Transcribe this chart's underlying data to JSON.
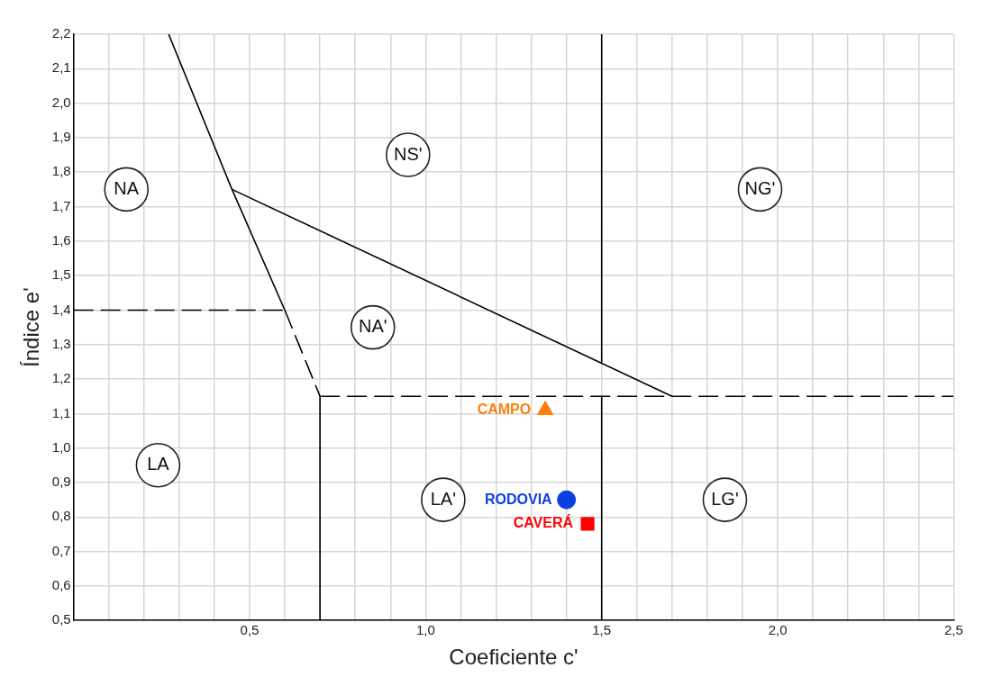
{
  "chart_data": {
    "type": "scatter",
    "xlabel": "Coeficiente c'",
    "ylabel": "Índice e'",
    "xlim": [
      0,
      2.5
    ],
    "ylim": [
      0.5,
      2.2
    ],
    "xticks": [
      {
        "value": 0,
        "label": null
      },
      {
        "value": 0.1,
        "label": null
      },
      {
        "value": 0.2,
        "label": null
      },
      {
        "value": 0.3,
        "label": null
      },
      {
        "value": 0.4,
        "label": null
      },
      {
        "value": 0.5,
        "label": "0,5"
      },
      {
        "value": 0.6,
        "label": null
      },
      {
        "value": 0.7,
        "label": null
      },
      {
        "value": 0.8,
        "label": null
      },
      {
        "value": 0.9,
        "label": null
      },
      {
        "value": 1.0,
        "label": "1,0"
      },
      {
        "value": 1.1,
        "label": null
      },
      {
        "value": 1.2,
        "label": null
      },
      {
        "value": 1.3,
        "label": null
      },
      {
        "value": 1.4,
        "label": null
      },
      {
        "value": 1.5,
        "label": "1,5"
      },
      {
        "value": 1.6,
        "label": null
      },
      {
        "value": 1.7,
        "label": null
      },
      {
        "value": 1.8,
        "label": null
      },
      {
        "value": 1.9,
        "label": null
      },
      {
        "value": 2.0,
        "label": "2,0"
      },
      {
        "value": 2.1,
        "label": null
      },
      {
        "value": 2.2,
        "label": null
      },
      {
        "value": 2.3,
        "label": null
      },
      {
        "value": 2.4,
        "label": null
      },
      {
        "value": 2.5,
        "label": "2,5"
      }
    ],
    "yticks": [
      {
        "value": 0.5,
        "label": "0,5"
      },
      {
        "value": 0.6,
        "label": "0,6"
      },
      {
        "value": 0.7,
        "label": "0,7"
      },
      {
        "value": 0.8,
        "label": "0,8"
      },
      {
        "value": 0.9,
        "label": "0,9"
      },
      {
        "value": 1.0,
        "label": "1,0"
      },
      {
        "value": 1.1,
        "label": "1,1"
      },
      {
        "value": 1.2,
        "label": "1,2"
      },
      {
        "value": 1.3,
        "label": "1,3"
      },
      {
        "value": 1.4,
        "label": "1,4"
      },
      {
        "value": 1.5,
        "label": "1,5"
      },
      {
        "value": 1.6,
        "label": "1,6"
      },
      {
        "value": 1.7,
        "label": "1,7"
      },
      {
        "value": 1.8,
        "label": "1,8"
      },
      {
        "value": 1.9,
        "label": "1,9"
      },
      {
        "value": 2.0,
        "label": "2,0"
      },
      {
        "value": 2.1,
        "label": "2,1"
      },
      {
        "value": 2.2,
        "label": "2,2"
      }
    ],
    "grid": true,
    "legend": false,
    "series": [
      {
        "type": "line",
        "color": "#000000",
        "line_style": "solid",
        "x": [
          0.27,
          0.45,
          0.6
        ],
        "values": [
          2.2,
          1.75,
          1.4
        ]
      },
      {
        "type": "line",
        "color": "#000000",
        "line_style": "dashed",
        "x": [
          0.6,
          0.7
        ],
        "values": [
          1.4,
          1.15
        ]
      },
      {
        "type": "line",
        "color": "#000000",
        "line_style": "solid",
        "x": [
          0.45,
          1.7
        ],
        "values": [
          1.75,
          1.15
        ]
      },
      {
        "type": "line",
        "color": "#000000",
        "line_style": "solid",
        "x": [
          1.5,
          1.5
        ],
        "values": [
          2.2,
          1.25
        ]
      },
      {
        "type": "line",
        "color": "#000000",
        "line_style": "solid",
        "x": [
          1.5,
          1.5
        ],
        "values": [
          1.15,
          0.5
        ]
      },
      {
        "type": "line",
        "color": "#000000",
        "line_style": "solid",
        "x": [
          0.7,
          0.7
        ],
        "values": [
          1.15,
          0.5
        ]
      },
      {
        "type": "line",
        "color": "#000000",
        "line_style": "dashed",
        "x": [
          0,
          0.6
        ],
        "values": [
          1.4,
          1.4
        ]
      },
      {
        "type": "line",
        "color": "#000000",
        "line_style": "dashed",
        "x": [
          0.7,
          2.5
        ],
        "values": [
          1.15,
          1.15
        ]
      },
      {
        "type": "scatter",
        "name": "CAMPO",
        "color": "#ff7f0e",
        "marker": "triangle",
        "x": [
          1.34
        ],
        "values": [
          1.11
        ]
      },
      {
        "type": "scatter",
        "name": "RODOVIA",
        "color": "#0b3fe0",
        "marker": "circle",
        "x": [
          1.4
        ],
        "values": [
          0.85
        ]
      },
      {
        "type": "scatter",
        "name": "CAVERÁ",
        "color": "#ff0000",
        "marker": "square",
        "x": [
          1.46
        ],
        "values": [
          0.78
        ]
      },
      {
        "type": "scatter",
        "color": "#222222",
        "marker": "circle",
        "x": [
          0.15,
          0.95,
          1.95,
          0.85,
          0.24,
          1.05,
          1.85
        ],
        "values": [
          1.75,
          1.85,
          1.75,
          1.35,
          0.95,
          0.85,
          0.85
        ],
        "value_labels": [
          "NA",
          "NS'",
          "NG'",
          "NA'",
          "LA",
          "LA'",
          "LG'"
        ]
      }
    ]
  }
}
